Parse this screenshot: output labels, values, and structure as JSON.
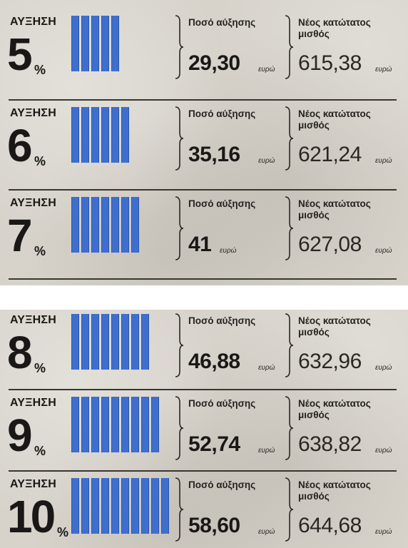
{
  "increase_label": "ΑΥΞΗΣΗ",
  "percent_sign": "%",
  "amount_label": "Ποσό αύξησης",
  "wage_label_line1": "Νέος κατώτατος",
  "wage_label_line2": "μισθός",
  "unit": "ευρώ",
  "colors": {
    "bar": "#3e6fcf",
    "text": "#1a1816",
    "paper": "#d7d3cb"
  },
  "rows": [
    {
      "percent": "5",
      "bars": 5,
      "amount": "29,30",
      "wage": "615,38"
    },
    {
      "percent": "6",
      "bars": 6,
      "amount": "35,16",
      "wage": "621,24"
    },
    {
      "percent": "7",
      "bars": 7,
      "amount": "41",
      "wage": "627,08"
    },
    {
      "percent": "8",
      "bars": 8,
      "amount": "46,88",
      "wage": "632,96"
    },
    {
      "percent": "9",
      "bars": 9,
      "amount": "52,74",
      "wage": "638,82"
    },
    {
      "percent": "10",
      "bars": 10,
      "amount": "58,60",
      "wage": "644,68"
    }
  ]
}
